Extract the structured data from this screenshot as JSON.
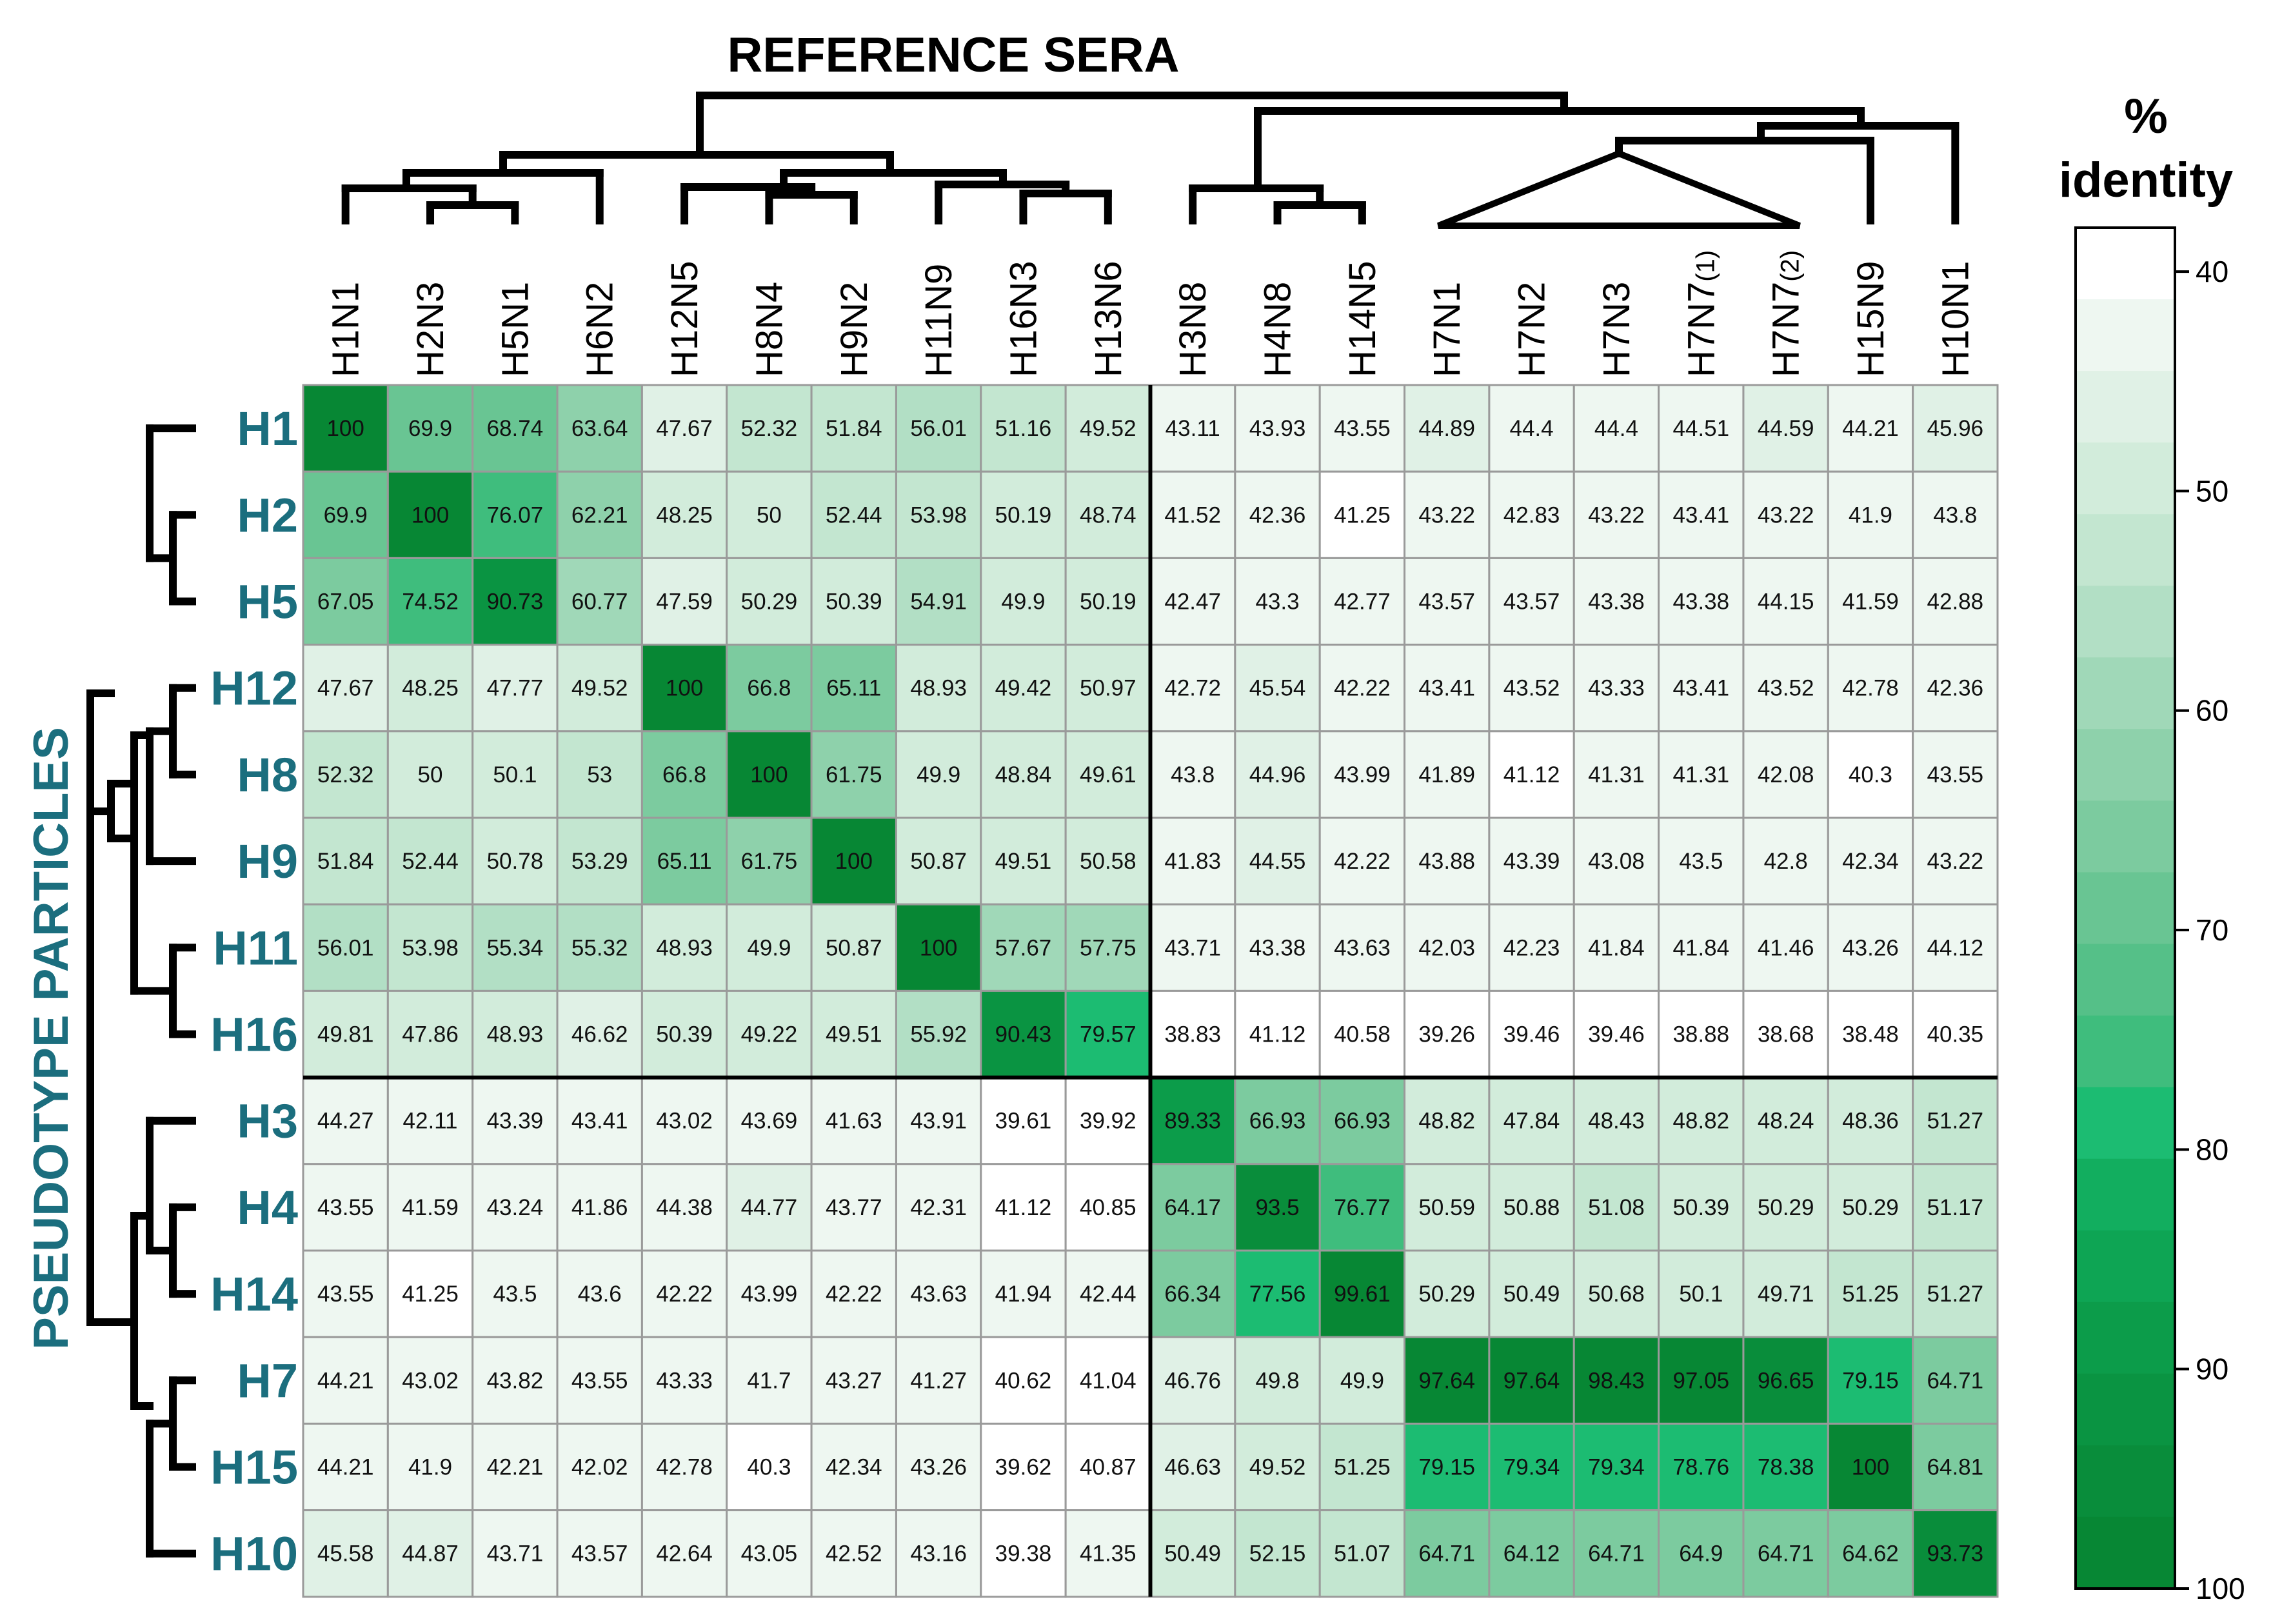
{
  "chart_data": {
    "type": "heatmap",
    "title": "REFERENCE SERA",
    "xlabel": "REFERENCE SERA",
    "ylabel": "PSEUDOTYPE PARTICLES",
    "columns": [
      "H1N1",
      "H2N3",
      "H5N1",
      "H6N2",
      "H12N5",
      "H8N4",
      "H9N2",
      "H11N9",
      "H16N3",
      "H13N6",
      "H3N8",
      "H4N8",
      "H14N5",
      "H7N1",
      "H7N2",
      "H7N3",
      "H7N7",
      "H7N7",
      "H15N9",
      "H10N1"
    ],
    "column_subscripts": [
      "",
      "",
      "",
      "",
      "",
      "",
      "",
      "",
      "",
      "",
      "",
      "",
      "",
      "",
      "",
      "",
      "(1)",
      "(2)",
      "",
      ""
    ],
    "rows": [
      "H1",
      "H2",
      "H5",
      "H12",
      "H8",
      "H9",
      "H11",
      "H16",
      "H3",
      "H4",
      "H14",
      "H7",
      "H15",
      "H10"
    ],
    "values": [
      [
        "100",
        "69.9",
        "68.74",
        "63.64",
        "47.67",
        "52.32",
        "51.84",
        "56.01",
        "51.16",
        "49.52",
        "43.11",
        "43.93",
        "43.55",
        "44.89",
        "44.4",
        "44.4",
        "44.51",
        "44.59",
        "44.21",
        "45.96"
      ],
      [
        "69.9",
        "100",
        "76.07",
        "62.21",
        "48.25",
        "50",
        "52.44",
        "53.98",
        "50.19",
        "48.74",
        "41.52",
        "42.36",
        "41.25",
        "43.22",
        "42.83",
        "43.22",
        "43.41",
        "43.22",
        "41.9",
        "43.8"
      ],
      [
        "67.05",
        "74.52",
        "90.73",
        "60.77",
        "47.59",
        "50.29",
        "50.39",
        "54.91",
        "49.9",
        "50.19",
        "42.47",
        "43.3",
        "42.77",
        "43.57",
        "43.57",
        "43.38",
        "43.38",
        "44.15",
        "41.59",
        "42.88"
      ],
      [
        "47.67",
        "48.25",
        "47.77",
        "49.52",
        "100",
        "66.8",
        "65.11",
        "48.93",
        "49.42",
        "50.97",
        "42.72",
        "45.54",
        "42.22",
        "43.41",
        "43.52",
        "43.33",
        "43.41",
        "43.52",
        "42.78",
        "42.36"
      ],
      [
        "52.32",
        "50",
        "50.1",
        "53",
        "66.8",
        "100",
        "61.75",
        "49.9",
        "48.84",
        "49.61",
        "43.8",
        "44.96",
        "43.99",
        "41.89",
        "41.12",
        "41.31",
        "41.31",
        "42.08",
        "40.3",
        "43.55"
      ],
      [
        "51.84",
        "52.44",
        "50.78",
        "53.29",
        "65.11",
        "61.75",
        "100",
        "50.87",
        "49.51",
        "50.58",
        "41.83",
        "44.55",
        "42.22",
        "43.88",
        "43.39",
        "43.08",
        "43.5",
        "42.8",
        "42.34",
        "43.22"
      ],
      [
        "56.01",
        "53.98",
        "55.34",
        "55.32",
        "48.93",
        "49.9",
        "50.87",
        "100",
        "57.67",
        "57.75",
        "43.71",
        "43.38",
        "43.63",
        "42.03",
        "42.23",
        "41.84",
        "41.84",
        "41.46",
        "43.26",
        "44.12"
      ],
      [
        "49.81",
        "47.86",
        "48.93",
        "46.62",
        "50.39",
        "49.22",
        "49.51",
        "55.92",
        "90.43",
        "79.57",
        "38.83",
        "41.12",
        "40.58",
        "39.26",
        "39.46",
        "39.46",
        "38.88",
        "38.68",
        "38.48",
        "40.35"
      ],
      [
        "44.27",
        "42.11",
        "43.39",
        "43.41",
        "43.02",
        "43.69",
        "41.63",
        "43.91",
        "39.61",
        "39.92",
        "89.33",
        "66.93",
        "66.93",
        "48.82",
        "47.84",
        "48.43",
        "48.82",
        "48.24",
        "48.36",
        "51.27"
      ],
      [
        "43.55",
        "41.59",
        "43.24",
        "41.86",
        "44.38",
        "44.77",
        "43.77",
        "42.31",
        "41.12",
        "40.85",
        "64.17",
        "93.5",
        "76.77",
        "50.59",
        "50.88",
        "51.08",
        "50.39",
        "50.29",
        "50.29",
        "51.17"
      ],
      [
        "43.55",
        "41.25",
        "43.5",
        "43.6",
        "42.22",
        "43.99",
        "42.22",
        "43.63",
        "41.94",
        "42.44",
        "66.34",
        "77.56",
        "99.61",
        "50.29",
        "50.49",
        "50.68",
        "50.1",
        "49.71",
        "51.25",
        "51.27"
      ],
      [
        "44.21",
        "43.02",
        "43.82",
        "43.55",
        "43.33",
        "41.7",
        "43.27",
        "41.27",
        "40.62",
        "41.04",
        "46.76",
        "49.8",
        "49.9",
        "97.64",
        "97.64",
        "98.43",
        "97.05",
        "96.65",
        "79.15",
        "64.71"
      ],
      [
        "44.21",
        "41.9",
        "42.21",
        "42.02",
        "42.78",
        "40.3",
        "42.34",
        "43.26",
        "39.62",
        "40.87",
        "46.63",
        "49.52",
        "51.25",
        "79.15",
        "79.34",
        "79.34",
        "78.76",
        "78.38",
        "100",
        "64.81"
      ],
      [
        "45.58",
        "44.87",
        "43.71",
        "43.57",
        "42.64",
        "43.05",
        "42.52",
        "43.16",
        "39.38",
        "41.35",
        "50.49",
        "52.15",
        "51.07",
        "64.71",
        "64.12",
        "64.71",
        "64.9",
        "64.71",
        "64.62",
        "93.73"
      ]
    ],
    "group_split_column": 10,
    "group_split_row": 8,
    "color_scale": {
      "title_line1": "%",
      "title_line2": "identity",
      "min": 38,
      "max": 100,
      "ticks": [
        40,
        50,
        60,
        70,
        80,
        90,
        100
      ],
      "colors": [
        "#ffffff",
        "#eef7f1",
        "#e0f1e6",
        "#d2ecdb",
        "#c3e6d0",
        "#b2dfc5",
        "#a0d8b8",
        "#8ed1ab",
        "#7ccb9f",
        "#69c593",
        "#55c088",
        "#3fbd7d",
        "#1cbc72",
        "#12ae5f",
        "#0ea554",
        "#0c9c4a",
        "#0a9442",
        "#098d3b",
        "#078734"
      ]
    }
  }
}
